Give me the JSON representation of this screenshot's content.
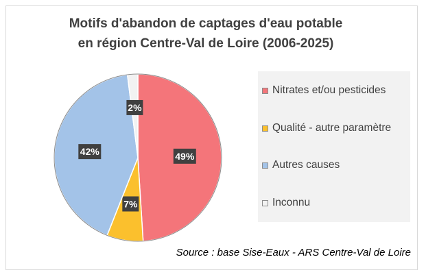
{
  "chart_data": {
    "type": "pie",
    "title": "Motifs d'abandon de captages d'eau potable",
    "subtitle": "en région Centre-Val de Loire (2006-2025)",
    "categories": [
      "Nitrates et/ou pesticides",
      "Qualité - autre paramètre",
      "Autres causes",
      "Inconnu"
    ],
    "values": [
      49,
      7,
      42,
      2
    ],
    "data_labels": [
      "49%",
      "7%",
      "42%",
      "2%"
    ],
    "colors": [
      "#f4757a",
      "#fbc02d",
      "#a3c3e8",
      "#f2f2f2"
    ],
    "legend_position": "right",
    "source": "Source : base Sise-Eaux - ARS Centre-Val de Loire"
  }
}
